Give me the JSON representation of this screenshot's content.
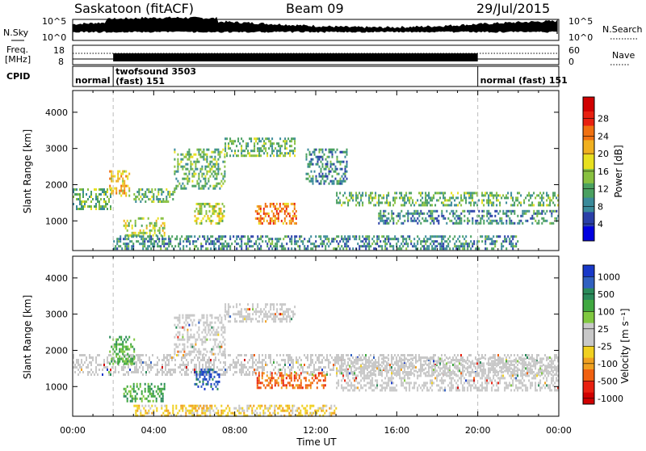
{
  "header": {
    "station": "Saskatoon (fitACF)",
    "beam": "Beam 09",
    "date": "29/Jul/2015"
  },
  "noise_panel": {
    "left_label": "N.Sky",
    "right_label": "N.Search",
    "left_ticks": [
      "10^5",
      "10^0"
    ],
    "right_ticks": [
      "10^5",
      "10^0"
    ]
  },
  "freq_panel": {
    "left_label_line1": "Freq.",
    "left_label_line2": "[MHz]",
    "right_label": "Nave",
    "left_ticks": [
      "18",
      "8"
    ],
    "right_ticks": [
      "60",
      "0"
    ]
  },
  "cpid_panel": {
    "label": "CPID",
    "modes": [
      {
        "text": "normal",
        "start_hour": 0.0,
        "end_hour": 2.0
      },
      {
        "text": "twofsound 3503",
        "start_hour": 2.0,
        "end_hour": 20.0
      },
      {
        "text": "(fast) 151",
        "start_hour": 2.0,
        "end_hour": 20.0
      },
      {
        "text": "normal (fast) 151",
        "start_hour": 20.0,
        "end_hour": 24.0
      }
    ]
  },
  "chart_data": [
    {
      "type": "heatmap",
      "name": "power",
      "ylabel": "Slant Range [km]",
      "yticks": [
        1000,
        2000,
        3000,
        4000
      ],
      "ylim": [
        180,
        4600
      ],
      "xlim": [
        0,
        24
      ],
      "colorbar": {
        "label": "Power [dB]",
        "ticks": [
          "4",
          "8",
          "12",
          "16",
          "20",
          "24",
          "28"
        ],
        "colors": [
          "#0000e0",
          "#2a3fa8",
          "#3a8a9a",
          "#4aa060",
          "#88c040",
          "#e8e020",
          "#f0b020",
          "#f07010",
          "#e82010",
          "#d00000"
        ]
      },
      "echo_regions": [
        {
          "hour_start": 0.0,
          "hour_end": 1.9,
          "range_start": 1350,
          "range_end": 1900,
          "level": 12
        },
        {
          "hour_start": 1.8,
          "hour_end": 2.8,
          "range_start": 1700,
          "range_end": 2400,
          "level": 20
        },
        {
          "hour_start": 2.5,
          "hour_end": 4.5,
          "range_start": 600,
          "range_end": 1100,
          "level": 16
        },
        {
          "hour_start": 3.0,
          "hour_end": 5.0,
          "range_start": 1500,
          "range_end": 1900,
          "level": 12
        },
        {
          "hour_start": 5.0,
          "hour_end": 7.5,
          "range_start": 1900,
          "range_end": 3000,
          "level": 12
        },
        {
          "hour_start": 6.0,
          "hour_end": 7.5,
          "range_start": 900,
          "range_end": 1500,
          "level": 16
        },
        {
          "hour_start": 7.5,
          "hour_end": 11.0,
          "range_start": 2800,
          "range_end": 3300,
          "level": 12
        },
        {
          "hour_start": 9.0,
          "hour_end": 11.0,
          "range_start": 900,
          "range_end": 1500,
          "level": 24
        },
        {
          "hour_start": 11.5,
          "hour_end": 13.5,
          "range_start": 2000,
          "range_end": 3000,
          "level": 8
        },
        {
          "hour_start": 13.0,
          "hour_end": 24.0,
          "range_start": 1400,
          "range_end": 1800,
          "level": 12
        },
        {
          "hour_start": 15.0,
          "hour_end": 24.0,
          "range_start": 900,
          "range_end": 1300,
          "level": 8
        },
        {
          "hour_start": 2.0,
          "hour_end": 22.0,
          "range_start": 200,
          "range_end": 600,
          "level": 8
        }
      ]
    },
    {
      "type": "heatmap",
      "name": "velocity",
      "ylabel": "Slant Range [km]",
      "xlabel": "Time UT",
      "xticks": [
        "00:00",
        "04:00",
        "08:00",
        "12:00",
        "16:00",
        "20:00",
        "00:00"
      ],
      "yticks": [
        1000,
        2000,
        3000,
        4000
      ],
      "ylim": [
        180,
        4600
      ],
      "xlim": [
        0,
        24
      ],
      "colorbar": {
        "label": "Velocity [m s⁻¹]",
        "ticks": [
          "1000",
          "500",
          "100",
          "25",
          "-25",
          "-100",
          "-500",
          "-1000"
        ],
        "colors": [
          "#1838c8",
          "#3060c0",
          "#2a8a5a",
          "#40a840",
          "#80c840",
          "#c8c8c8",
          "#c8c8c8",
          "#f0d020",
          "#f0a020",
          "#f06010",
          "#e82010",
          "#d00000"
        ]
      },
      "echo_regions": [
        {
          "hour_start": 0.0,
          "hour_end": 24.0,
          "range_start": 1300,
          "range_end": 1900,
          "level": 0
        },
        {
          "hour_start": 1.8,
          "hour_end": 3.0,
          "range_start": 1600,
          "range_end": 2400,
          "level": 100
        },
        {
          "hour_start": 2.5,
          "hour_end": 4.5,
          "range_start": 600,
          "range_end": 1100,
          "level": 100
        },
        {
          "hour_start": 5.0,
          "hour_end": 7.5,
          "range_start": 1900,
          "range_end": 3000,
          "level": 0
        },
        {
          "hour_start": 6.0,
          "hour_end": 7.2,
          "range_start": 900,
          "range_end": 1500,
          "level": 500
        },
        {
          "hour_start": 7.5,
          "hour_end": 11.0,
          "range_start": 2800,
          "range_end": 3300,
          "level": 0
        },
        {
          "hour_start": 9.0,
          "hour_end": 12.5,
          "range_start": 950,
          "range_end": 1400,
          "level": -500
        },
        {
          "hour_start": 3.0,
          "hour_end": 13.0,
          "range_start": 200,
          "range_end": 500,
          "level": -100
        },
        {
          "hour_start": 13.0,
          "hour_end": 24.0,
          "range_start": 900,
          "range_end": 1800,
          "level": 0
        }
      ]
    }
  ]
}
